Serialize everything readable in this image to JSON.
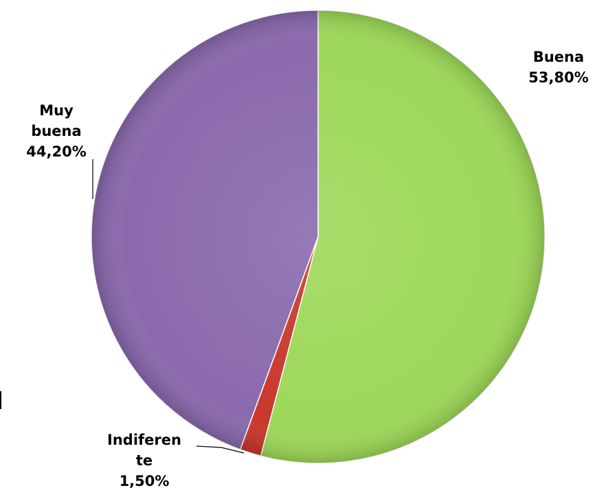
{
  "chart_data": {
    "type": "pie",
    "title": "",
    "categories": [
      "Buena",
      "Indiferente",
      "Muy buena"
    ],
    "values": [
      53.8,
      1.5,
      44.2
    ],
    "value_labels": [
      "53,80%",
      "1,50%",
      "44,20%"
    ],
    "label_lines": [
      [
        "Buena"
      ],
      [
        "Indiferen",
        "te"
      ],
      [
        "Muy",
        "buena"
      ]
    ],
    "colors": [
      "#9ED85A",
      "#C8382E",
      "#8A6AAD"
    ],
    "start_angle_deg": 0,
    "direction": "clockwise",
    "legend": "none",
    "data_labels": "outside-with-leader-lines"
  }
}
